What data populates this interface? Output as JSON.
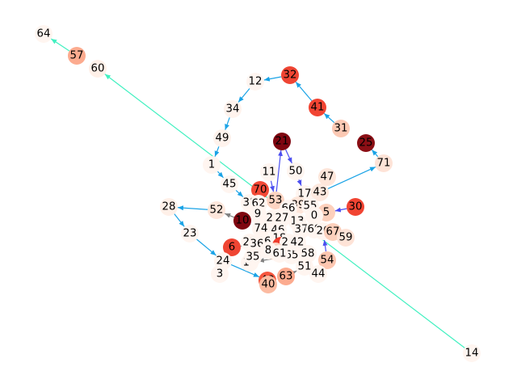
{
  "graph": {
    "nodes": [
      {
        "id": "64",
        "color": "#fff5f0"
      },
      {
        "id": "57",
        "color": "#fcab8f"
      },
      {
        "id": "60",
        "color": "#fff0e8"
      },
      {
        "id": "32",
        "color": "#ef4533"
      },
      {
        "id": "12",
        "color": "#fff5f0"
      },
      {
        "id": "34",
        "color": "#fff3ed"
      },
      {
        "id": "41",
        "color": "#f14432"
      },
      {
        "id": "31",
        "color": "#fcc9b4"
      },
      {
        "id": "25",
        "color": "#8b0f15"
      },
      {
        "id": "49",
        "color": "#fff3ed"
      },
      {
        "id": "21",
        "color": "#7f0610"
      },
      {
        "id": "71",
        "color": "#fee3d7"
      },
      {
        "id": "1",
        "color": "#fff5f0"
      },
      {
        "id": "50",
        "color": "#fff5f0"
      },
      {
        "id": "47",
        "color": "#fee6da"
      },
      {
        "id": "45",
        "color": "#fff5f0"
      },
      {
        "id": "11",
        "color": "#fff5f0"
      },
      {
        "id": "70",
        "color": "#f34935"
      },
      {
        "id": "17",
        "color": "#fff5f0"
      },
      {
        "id": "43",
        "color": "#fee9df"
      },
      {
        "id": "30",
        "color": "#f14432"
      },
      {
        "id": "28",
        "color": "#fff0e8"
      },
      {
        "id": "38",
        "color": "#fff5f0"
      },
      {
        "id": "53",
        "color": "#fdd4c2"
      },
      {
        "id": "39",
        "color": "#fee6da"
      },
      {
        "id": "55",
        "color": "#fff5f0"
      },
      {
        "id": "5",
        "color": "#fdd0bc"
      },
      {
        "id": "52",
        "color": "#fee7dc"
      },
      {
        "id": "62",
        "color": "#fff5f0"
      },
      {
        "id": "66",
        "color": "#fff5f0"
      },
      {
        "id": "9",
        "color": "#fff5f0"
      },
      {
        "id": "0",
        "color": "#fff5f0"
      },
      {
        "id": "10",
        "color": "#7f0610"
      },
      {
        "id": "2",
        "color": "#fff5f0"
      },
      {
        "id": "29",
        "color": "#fff5f0"
      },
      {
        "id": "27",
        "color": "#fff5f0"
      },
      {
        "id": "13",
        "color": "#fff5f0"
      },
      {
        "id": "23",
        "color": "#fff5f0"
      },
      {
        "id": "74",
        "color": "#fff5f0"
      },
      {
        "id": "46",
        "color": "#fff5f0"
      },
      {
        "id": "37",
        "color": "#fff5f0"
      },
      {
        "id": "69",
        "color": "#fff5f0"
      },
      {
        "id": "20",
        "color": "#fff5f0"
      },
      {
        "id": "67",
        "color": "#fdd0bc"
      },
      {
        "id": "59",
        "color": "#fee3d7"
      },
      {
        "id": "18",
        "color": "#fff5f0"
      },
      {
        "id": "16",
        "color": "#fff5f0"
      },
      {
        "id": "22",
        "color": "#fff5f0"
      },
      {
        "id": "36",
        "color": "#fff5f0"
      },
      {
        "id": "4",
        "color": "#ef3b2c"
      },
      {
        "id": "26",
        "color": "#fff5f0"
      },
      {
        "id": "6",
        "color": "#ef4533"
      },
      {
        "id": "68",
        "color": "#fdd4c2"
      },
      {
        "id": "65",
        "color": "#fff5f0"
      },
      {
        "id": "58",
        "color": "#fff5f0"
      },
      {
        "id": "54",
        "color": "#fdc6b0"
      },
      {
        "id": "24",
        "color": "#fff5f0"
      },
      {
        "id": "15",
        "color": "#fff5f0"
      },
      {
        "id": "35",
        "color": "#fff5f0"
      },
      {
        "id": "51",
        "color": "#fff5f0"
      },
      {
        "id": "3",
        "color": "#fff5f0"
      },
      {
        "id": "48",
        "color": "#f5553d"
      },
      {
        "id": "63",
        "color": "#fcab8f"
      },
      {
        "id": "44",
        "color": "#fff5f0"
      },
      {
        "id": "40",
        "color": "#fcbba1"
      },
      {
        "id": "14",
        "color": "#fff5f0"
      },
      {
        "id": "42",
        "color": "#fff5f0"
      },
      {
        "id": "8",
        "color": "#fff5f0"
      },
      {
        "id": "61",
        "color": "#fff5f0"
      }
    ],
    "edges": [
      {
        "from": "57",
        "to": "64",
        "color": "#41f0c0"
      },
      {
        "from": "14",
        "to": "60",
        "color": "#41f0c0"
      },
      {
        "from": "32",
        "to": "12",
        "color": "#1aa3e6"
      },
      {
        "from": "12",
        "to": "34",
        "color": "#1aa3e6"
      },
      {
        "from": "34",
        "to": "49",
        "color": "#1aa3e6"
      },
      {
        "from": "49",
        "to": "1",
        "color": "#1aa3e6"
      },
      {
        "from": "1",
        "to": "45",
        "color": "#1aa3e6"
      },
      {
        "from": "45",
        "to": "38",
        "color": "#1aa3e6"
      },
      {
        "from": "41",
        "to": "32",
        "color": "#1aa3e6"
      },
      {
        "from": "31",
        "to": "41",
        "color": "#1aa3e6"
      },
      {
        "from": "71",
        "to": "25",
        "color": "#1aa3e6"
      },
      {
        "from": "43",
        "to": "71",
        "color": "#1aa3e6"
      },
      {
        "from": "53",
        "to": "21",
        "color": "#4b4ef0"
      },
      {
        "from": "21",
        "to": "50",
        "color": "#4b4ef0"
      },
      {
        "from": "50",
        "to": "17",
        "color": "#4b4ef0"
      },
      {
        "from": "11",
        "to": "53",
        "color": "#4b4ef0"
      },
      {
        "from": "52",
        "to": "28",
        "color": "#1aa3e6"
      },
      {
        "from": "28",
        "to": "23",
        "color": "#1aa3e6"
      },
      {
        "from": "23",
        "to": "24",
        "color": "#1aa3e6"
      },
      {
        "from": "24",
        "to": "48",
        "color": "#1aa3e6"
      },
      {
        "from": "30",
        "to": "5",
        "color": "#4b4ef0"
      },
      {
        "from": "54",
        "to": "20",
        "color": "#4b4ef0"
      },
      {
        "from": "10",
        "to": "52",
        "color": "#808080"
      },
      {
        "from": "36",
        "to": "6",
        "color": "#808080"
      },
      {
        "from": "6",
        "to": "3",
        "color": "#e61a1a"
      },
      {
        "from": "8",
        "to": "35",
        "color": "#9f3fe0"
      },
      {
        "from": "66",
        "to": "53",
        "color": "#4b4ef0"
      },
      {
        "from": "63",
        "to": "51",
        "color": "#808080"
      },
      {
        "from": "51",
        "to": "44",
        "color": "#808080"
      },
      {
        "from": "65",
        "to": "15",
        "color": "#808080"
      }
    ]
  }
}
